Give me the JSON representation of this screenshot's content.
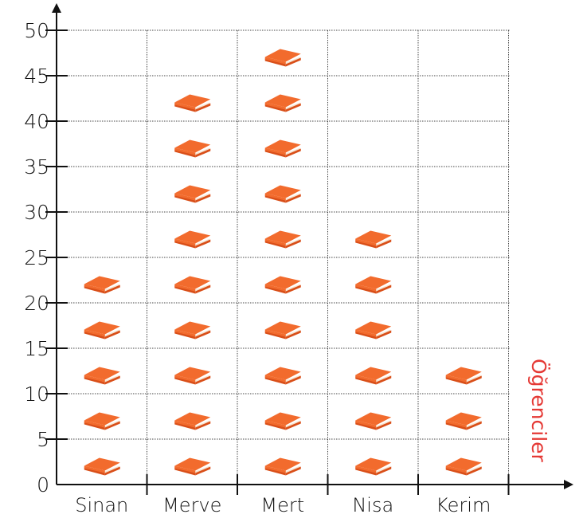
{
  "chart_data": {
    "type": "pictograph",
    "categories": [
      "Sinan",
      "Merve",
      "Mert",
      "Nisa",
      "Kerim"
    ],
    "values": [
      25,
      45,
      50,
      30,
      15
    ],
    "unit_per_icon": 5,
    "icon": "book-icon",
    "xlabel": "Öğrenciler",
    "ylabel": "",
    "ylim": [
      0,
      50
    ],
    "yticks": [
      "0",
      "5",
      "10",
      "15",
      "20",
      "25",
      "30",
      "35",
      "40",
      "45",
      "50"
    ],
    "grid": true,
    "colors": {
      "book": "#f26b2d",
      "book_dark": "#d94f19",
      "book_pages": "#f5e3cf",
      "axis_title": "#e53935",
      "grid": "#444444"
    }
  }
}
